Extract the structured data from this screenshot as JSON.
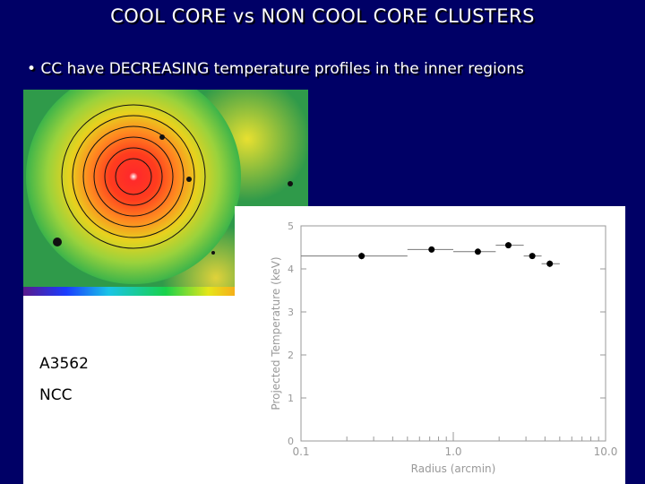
{
  "slide": {
    "title": "COOL CORE vs NON COOL CORE CLUSTERS",
    "bullet": "• CC have DECREASING temperature profiles in the inner regions",
    "labels": [
      "A3562",
      "NCC"
    ]
  },
  "image": {
    "description_icon": "xray-cluster-map-icon",
    "colorbar_colors": [
      "#5a1a8c",
      "#1a3cff",
      "#19c4e6",
      "#19d24a",
      "#e6e619",
      "#ff8c19",
      "#ff1919",
      "#ffffff"
    ]
  },
  "chart_data": {
    "type": "scatter",
    "title": "",
    "xlabel": "Radius (arcmin)",
    "ylabel": "Projected Temperature (keV)",
    "xscale": "log",
    "xlim": [
      0.1,
      10.0
    ],
    "ylim": [
      0,
      5
    ],
    "x_ticks": [
      "0.1",
      "1.0",
      "10.0"
    ],
    "y_ticks": [
      "0",
      "1",
      "2",
      "3",
      "4",
      "5"
    ],
    "series": [
      {
        "points": [
          {
            "x": 0.25,
            "y": 4.3,
            "xerr": [
              0.1,
              0.5
            ],
            "yerr": 0.08
          },
          {
            "x": 0.72,
            "y": 4.45,
            "xerr": [
              0.5,
              1.0
            ],
            "yerr": 0.07
          },
          {
            "x": 1.45,
            "y": 4.4,
            "xerr": [
              1.0,
              1.9
            ],
            "yerr": 0.06
          },
          {
            "x": 2.3,
            "y": 4.55,
            "xerr": [
              1.9,
              2.9
            ],
            "yerr": 0.07
          },
          {
            "x": 3.3,
            "y": 4.3,
            "xerr": [
              2.9,
              3.8
            ],
            "yerr": 0.07
          },
          {
            "x": 4.3,
            "y": 4.12,
            "xerr": [
              3.8,
              5.0
            ],
            "yerr": 0.08
          }
        ]
      }
    ]
  }
}
